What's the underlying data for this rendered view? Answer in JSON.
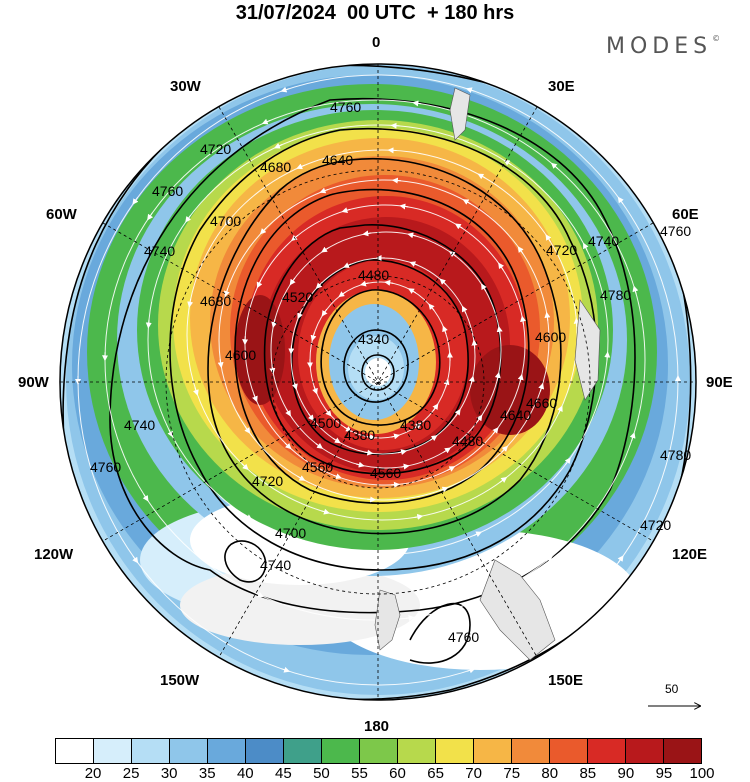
{
  "title": "31/07/2024  00 UTC  + 180 hrs",
  "brand": {
    "text": "MODES",
    "mark": "©"
  },
  "longitude_labels": {
    "top": "0",
    "bottom": "180",
    "left": "90W",
    "right": "90E",
    "nw30": "30W",
    "ne30": "30E",
    "nw60": "60W",
    "ne60": "60E",
    "sw120": "120W",
    "se120": "120E",
    "sw150": "150W",
    "se150": "150E"
  },
  "colorbar": {
    "colors": [
      "#ffffff",
      "#d6eefb",
      "#b5def5",
      "#8fc6ea",
      "#69a9dc",
      "#4c8cc7",
      "#3fa08a",
      "#4cb84c",
      "#7dc84a",
      "#b7d94c",
      "#f2e14a",
      "#f6b646",
      "#f18a3a",
      "#ea5a2c",
      "#d82a25",
      "#b8191c",
      "#9a1416"
    ],
    "labels": [
      "20",
      "25",
      "30",
      "35",
      "40",
      "45",
      "50",
      "55",
      "60",
      "65",
      "70",
      "75",
      "80",
      "85",
      "90",
      "95",
      "100"
    ]
  },
  "reference_vector": {
    "label": "50"
  },
  "contour_labels": [
    "4760",
    "4720",
    "4680",
    "4640",
    "4760",
    "4740",
    "4700",
    "4680",
    "4600",
    "4520",
    "4480",
    "4340",
    "4380",
    "4500",
    "4560",
    "4600",
    "4640",
    "4660",
    "4720",
    "4740",
    "4760",
    "4780",
    "4720",
    "4740",
    "4760",
    "4780",
    "4720",
    "4700",
    "4740",
    "4760",
    "4560",
    "4480",
    "4380"
  ]
}
